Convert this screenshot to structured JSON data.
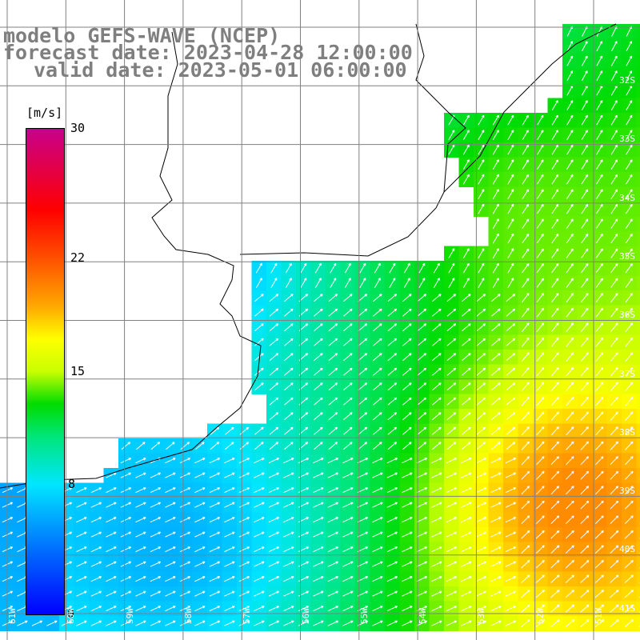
{
  "title": {
    "model": "modelo GEFS-WAVE (NCEP)",
    "forecast": "forecast date: 2023-04-28 12:00:00",
    "valid": "valid date: 2023-05-01 06:00:00"
  },
  "legend": {
    "unit": "[m/s]",
    "ticks": [
      "30",
      "22",
      "15",
      "8",
      "0"
    ],
    "tick_values": [
      30,
      22,
      15,
      8,
      0
    ],
    "range": [
      0,
      30
    ]
  },
  "lat_labels": [
    "32S",
    "33S",
    "34S",
    "35S",
    "36S",
    "37S",
    "38S",
    "39S",
    "40S",
    "41S"
  ],
  "lon_labels": [
    "61W",
    "60W",
    "59W",
    "58W",
    "57W",
    "56W",
    "55W",
    "54W",
    "53W",
    "52W",
    "51W"
  ],
  "colors": {
    "land": "#ffffff",
    "coast": "#000000",
    "grid": "#808080",
    "title": "#7f7f7f",
    "arrow": "#ffffff"
  },
  "map_data": {
    "variable": "wind speed",
    "unit": "m/s",
    "arrows": "wind direction (white vectors)",
    "grid_lines": true
  }
}
